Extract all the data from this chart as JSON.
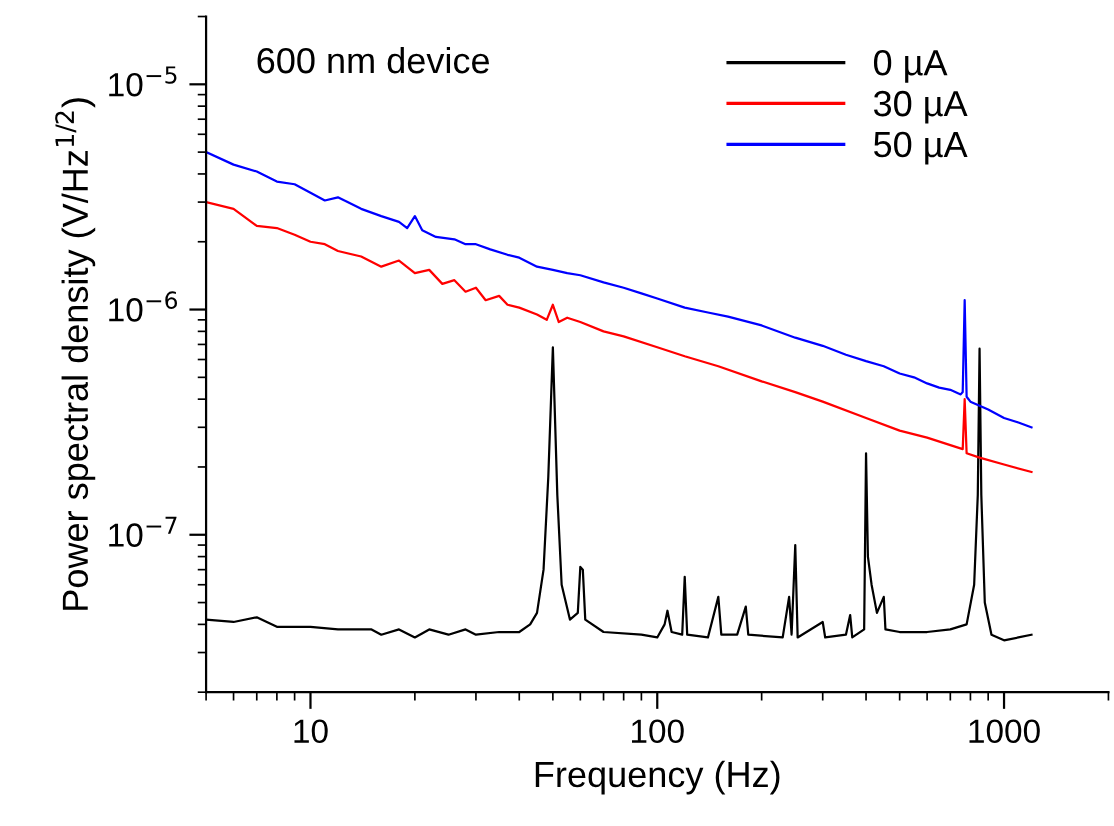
{
  "chart_data": {
    "type": "line",
    "xlabel": "Frequency (Hz)",
    "ylabel": "Power spectral density (V/Hz$^{1/2}$)",
    "annotations": [
      "600 nm device"
    ],
    "log": "xy",
    "xlim": [
      5,
      2000
    ],
    "ylim": [
      2e-08,
      2e-05
    ],
    "xticks": [
      10,
      100,
      1000
    ],
    "yticks": [
      {
        "value": 1e-07,
        "label": "10$^{−7}$"
      },
      {
        "value": 1e-06,
        "label": "10$^{−6}$"
      },
      {
        "value": 1e-05,
        "label": "10$^{−5}$"
      }
    ],
    "grid": false,
    "legend": "top right",
    "marker": "none",
    "line_style": "solid",
    "series": [
      {
        "name": "0 µA",
        "color": "#000000",
        "x": [
          5,
          6,
          7,
          8,
          10,
          12,
          15,
          16,
          18,
          20,
          22,
          25,
          28,
          30,
          35,
          40,
          43,
          45,
          47,
          48.5,
          50,
          51.5,
          53,
          56,
          59,
          60,
          61,
          62,
          70,
          90,
          100,
          105,
          107,
          110,
          118,
          120,
          122,
          140,
          150,
          153,
          170,
          180,
          183,
          230,
          240,
          244,
          250,
          254,
          300,
          305,
          350,
          360,
          365,
          395,
          400,
          405,
          415,
          430,
          450,
          455,
          500,
          600,
          700,
          780,
          820,
          840,
          850,
          860,
          880,
          920,
          1000,
          1100,
          1200
        ],
        "values": [
          4.2e-08,
          4.1e-08,
          4.3e-08,
          3.9e-08,
          3.9e-08,
          3.8e-08,
          3.8e-08,
          3.6e-08,
          3.8e-08,
          3.5e-08,
          3.8e-08,
          3.6e-08,
          3.8e-08,
          3.6e-08,
          3.7e-08,
          3.7e-08,
          4e-08,
          4.5e-08,
          7e-08,
          1.8e-07,
          6.8e-07,
          1.5e-07,
          6e-08,
          4.2e-08,
          4.5e-08,
          7.2e-08,
          7e-08,
          4.2e-08,
          3.7e-08,
          3.6e-08,
          3.5e-08,
          4e-08,
          4.6e-08,
          3.7e-08,
          3.6e-08,
          6.5e-08,
          3.6e-08,
          3.5e-08,
          5.3e-08,
          3.6e-08,
          3.6e-08,
          4.8e-08,
          3.6e-08,
          3.5e-08,
          5.3e-08,
          3.6e-08,
          9e-08,
          3.5e-08,
          4.1e-08,
          3.5e-08,
          3.6e-08,
          4.4e-08,
          3.5e-08,
          3.8e-08,
          2.3e-07,
          8e-08,
          6e-08,
          4.5e-08,
          5.3e-08,
          3.8e-08,
          3.7e-08,
          3.7e-08,
          3.8e-08,
          4e-08,
          6e-08,
          1.5e-07,
          6.7e-07,
          1.5e-07,
          5e-08,
          3.6e-08,
          3.4e-08,
          3.5e-08,
          3.6e-08
        ]
      },
      {
        "name": "30 µA",
        "color": "#ff0000",
        "x": [
          5,
          6,
          7,
          8,
          9,
          10,
          11,
          12,
          14,
          16,
          18,
          20,
          22,
          24,
          26,
          28,
          30,
          32,
          35,
          37,
          40,
          45,
          48,
          50,
          52,
          55,
          60,
          70,
          80,
          100,
          120,
          150,
          200,
          250,
          300,
          400,
          500,
          600,
          700,
          760,
          770,
          780,
          850,
          1000,
          1200
        ],
        "values": [
          3e-06,
          2.8e-06,
          2.35e-06,
          2.3e-06,
          2.15e-06,
          2e-06,
          1.95e-06,
          1.82e-06,
          1.72e-06,
          1.55e-06,
          1.65e-06,
          1.45e-06,
          1.5e-06,
          1.3e-06,
          1.35e-06,
          1.2e-06,
          1.25e-06,
          1.1e-06,
          1.15e-06,
          1.05e-06,
          1.02e-06,
          9.5e-07,
          9e-07,
          1.05e-06,
          8.8e-07,
          9.2e-07,
          8.8e-07,
          8e-07,
          7.6e-07,
          6.8e-07,
          6.2e-07,
          5.6e-07,
          4.8e-07,
          4.3e-07,
          3.9e-07,
          3.3e-07,
          2.9e-07,
          2.7e-07,
          2.5e-07,
          2.4e-07,
          4e-07,
          2.3e-07,
          2.2e-07,
          2.05e-07,
          1.9e-07
        ]
      },
      {
        "name": "50 µA",
        "color": "#0000ff",
        "x": [
          5,
          6,
          7,
          8,
          9,
          10,
          11,
          12,
          14,
          16,
          18,
          19,
          20,
          21,
          23,
          26,
          28,
          30,
          33,
          37,
          40,
          45,
          50,
          55,
          60,
          70,
          80,
          90,
          100,
          120,
          140,
          160,
          200,
          250,
          300,
          350,
          400,
          450,
          500,
          550,
          600,
          650,
          700,
          750,
          760,
          770,
          780,
          800,
          900,
          1000,
          1100,
          1200
        ],
        "values": [
          5e-06,
          4.4e-06,
          4.1e-06,
          3.7e-06,
          3.6e-06,
          3.3e-06,
          3.05e-06,
          3.15e-06,
          2.8e-06,
          2.6e-06,
          2.45e-06,
          2.3e-06,
          2.6e-06,
          2.25e-06,
          2.1e-06,
          2.05e-06,
          1.95e-06,
          1.95e-06,
          1.85e-06,
          1.75e-06,
          1.7e-06,
          1.55e-06,
          1.5e-06,
          1.45e-06,
          1.42e-06,
          1.32e-06,
          1.25e-06,
          1.18e-06,
          1.12e-06,
          1.02e-06,
          9.7e-07,
          9.3e-07,
          8.5e-07,
          7.5e-07,
          6.9e-07,
          6.3e-07,
          5.9e-07,
          5.6e-07,
          5.2e-07,
          5e-07,
          4.7e-07,
          4.5e-07,
          4.4e-07,
          4.2e-07,
          4.3e-07,
          1.1e-06,
          4.1e-07,
          3.9e-07,
          3.6e-07,
          3.3e-07,
          3.15e-07,
          3e-07
        ]
      }
    ]
  }
}
